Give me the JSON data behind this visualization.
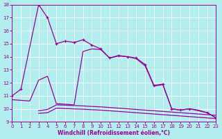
{
  "xlabel": "Windchill (Refroidissement éolien,°C)",
  "bg_color": "#b2eeee",
  "grid_color": "#ffffff",
  "line_color": "#990099",
  "line1_x": [
    0,
    1,
    3,
    4,
    5,
    6,
    7,
    8,
    9,
    10,
    11,
    12,
    13,
    14,
    15,
    16,
    17,
    18,
    19,
    20,
    22,
    23
  ],
  "line1_y": [
    11.0,
    11.5,
    18.0,
    17.0,
    15.0,
    15.2,
    15.1,
    15.3,
    14.9,
    14.6,
    13.9,
    14.1,
    14.0,
    13.9,
    13.4,
    11.8,
    11.9,
    10.0,
    9.9,
    10.0,
    9.7,
    9.3
  ],
  "line2_x": [
    0,
    1,
    2,
    3,
    4,
    5,
    6,
    7,
    8,
    9,
    10,
    11,
    12,
    13,
    14,
    15,
    16,
    17,
    18,
    19,
    20,
    21,
    22,
    23
  ],
  "line2_y": [
    10.7,
    10.65,
    10.6,
    12.2,
    12.5,
    10.4,
    10.35,
    10.3,
    14.4,
    14.6,
    14.55,
    13.9,
    14.05,
    14.0,
    13.85,
    13.3,
    11.75,
    11.85,
    10.0,
    9.9,
    10.0,
    9.9,
    9.7,
    9.3
  ],
  "line3_x": [
    3,
    4,
    5,
    6,
    7,
    8,
    9,
    10,
    11,
    12,
    13,
    14,
    15,
    16,
    17,
    18,
    19,
    20,
    21,
    22,
    23
  ],
  "line3_y": [
    9.85,
    9.95,
    10.3,
    10.28,
    10.25,
    10.22,
    10.18,
    10.15,
    10.1,
    10.05,
    10.0,
    9.95,
    9.9,
    9.85,
    9.8,
    9.75,
    9.7,
    9.65,
    9.6,
    9.55,
    9.5
  ],
  "line4_x": [
    3,
    4,
    5,
    6,
    7,
    8,
    9,
    10,
    11,
    12,
    13,
    14,
    15,
    16,
    17,
    18,
    19,
    20,
    21,
    22,
    23
  ],
  "line4_y": [
    9.65,
    9.7,
    10.05,
    10.02,
    9.99,
    9.97,
    9.93,
    9.9,
    9.85,
    9.8,
    9.75,
    9.7,
    9.65,
    9.6,
    9.55,
    9.5,
    9.45,
    9.4,
    9.35,
    9.3,
    9.25
  ],
  "ylim": [
    9,
    18
  ],
  "xlim": [
    0,
    23
  ],
  "xticks": [
    0,
    1,
    2,
    3,
    4,
    5,
    6,
    7,
    8,
    9,
    10,
    11,
    12,
    13,
    14,
    15,
    16,
    17,
    18,
    19,
    20,
    21,
    22,
    23
  ],
  "yticks": [
    9,
    10,
    11,
    12,
    13,
    14,
    15,
    16,
    17,
    18
  ],
  "tick_fontsize": 5,
  "xlabel_fontsize": 5.5,
  "lw": 0.9,
  "marker_size": 3.5,
  "marker_lw": 0.9
}
